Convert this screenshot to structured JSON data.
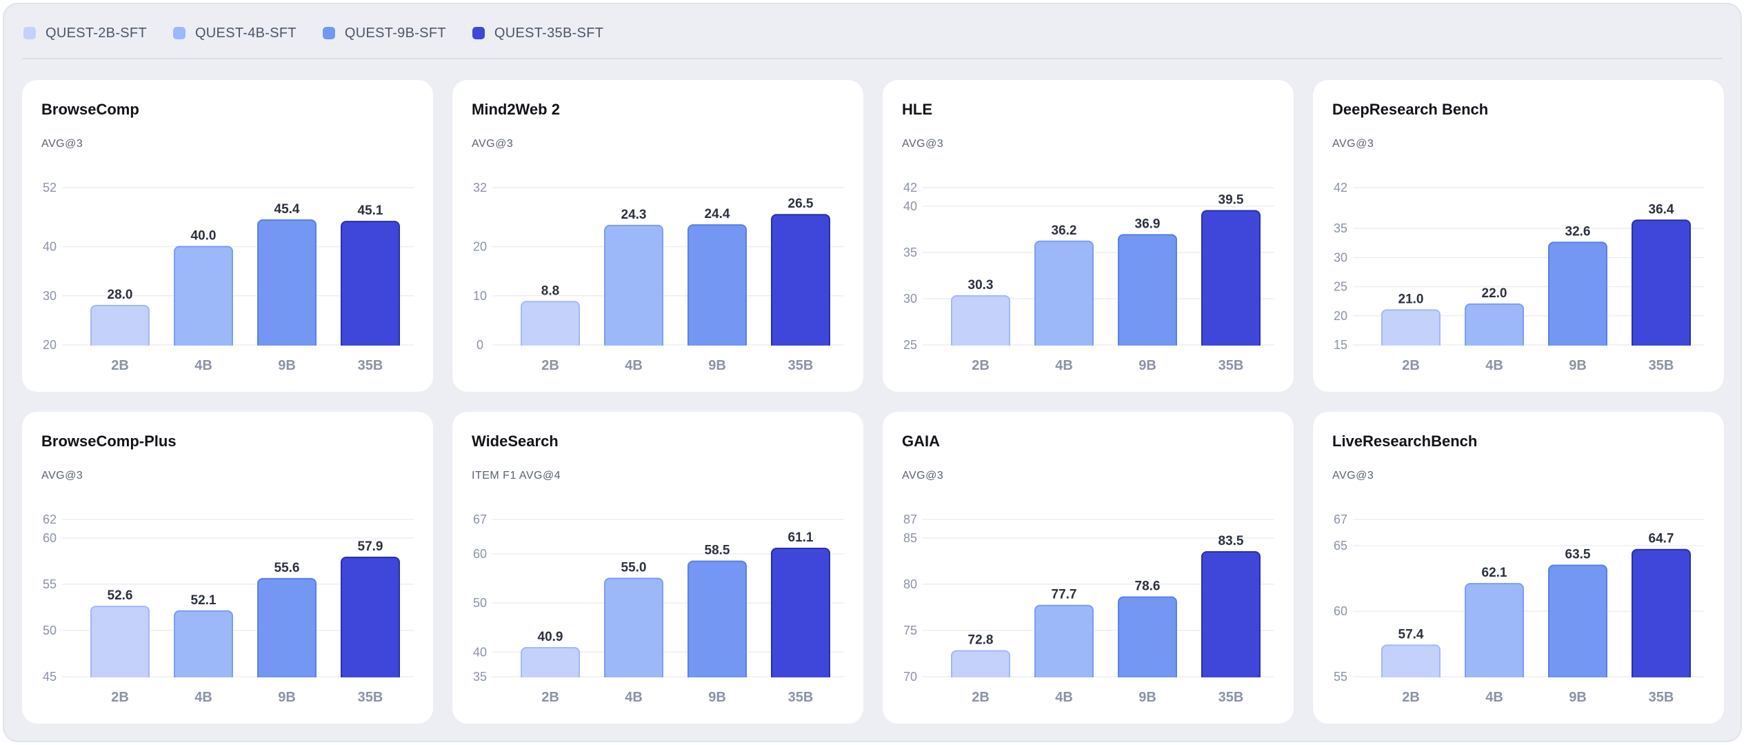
{
  "legend": [
    {
      "label": "QUEST-2B-SFT",
      "color": "#c3d1fb"
    },
    {
      "label": "QUEST-4B-SFT",
      "color": "#9db8f8"
    },
    {
      "label": "QUEST-9B-SFT",
      "color": "#7397f2"
    },
    {
      "label": "QUEST-35B-SFT",
      "color": "#3f47da"
    }
  ],
  "colors": {
    "bar_fills": [
      "#c3d1fb",
      "#9db8f8",
      "#7397f2",
      "#3f47da"
    ],
    "bar_strokes": [
      "#a4b8f5",
      "#7c9ef0",
      "#5b80e6",
      "#2a2fa8"
    ],
    "grid": "#eceef2",
    "tick_text": "#8a93a6",
    "category_text": "#8a93a6",
    "value_text": "#2b3140"
  },
  "chart_data": [
    {
      "type": "bar",
      "title": "BrowseComp",
      "subtitle": "AVG@3",
      "categories": [
        "2B",
        "4B",
        "9B",
        "35B"
      ],
      "values": [
        28.0,
        40.0,
        45.4,
        45.1
      ],
      "value_labels": [
        "28.0",
        "40.0",
        "45.4",
        "45.1"
      ],
      "yticks": [
        20,
        30,
        40,
        52
      ],
      "ylim": [
        20,
        52
      ]
    },
    {
      "type": "bar",
      "title": "Mind2Web 2",
      "subtitle": "AVG@3",
      "categories": [
        "2B",
        "4B",
        "9B",
        "35B"
      ],
      "values": [
        8.8,
        24.3,
        24.4,
        26.5
      ],
      "value_labels": [
        "8.8",
        "24.3",
        "24.4",
        "26.5"
      ],
      "yticks": [
        0,
        10,
        20,
        32
      ],
      "ylim": [
        0,
        32
      ]
    },
    {
      "type": "bar",
      "title": "HLE",
      "subtitle": "AVG@3",
      "categories": [
        "2B",
        "4B",
        "9B",
        "35B"
      ],
      "values": [
        30.3,
        36.2,
        36.9,
        39.5
      ],
      "value_labels": [
        "30.3",
        "36.2",
        "36.9",
        "39.5"
      ],
      "yticks": [
        25,
        30,
        35,
        40,
        42
      ],
      "ylim": [
        25,
        42
      ]
    },
    {
      "type": "bar",
      "title": "DeepResearch Bench",
      "subtitle": "AVG@3",
      "categories": [
        "2B",
        "4B",
        "9B",
        "35B"
      ],
      "values": [
        21.0,
        22.0,
        32.6,
        36.4
      ],
      "value_labels": [
        "21.0",
        "22.0",
        "32.6",
        "36.4"
      ],
      "yticks": [
        15,
        20,
        25,
        30,
        35,
        42
      ],
      "ylim": [
        15,
        42
      ]
    },
    {
      "type": "bar",
      "title": "BrowseComp-Plus",
      "subtitle": "AVG@3",
      "categories": [
        "2B",
        "4B",
        "9B",
        "35B"
      ],
      "values": [
        52.6,
        52.1,
        55.6,
        57.9
      ],
      "value_labels": [
        "52.6",
        "52.1",
        "55.6",
        "57.9"
      ],
      "yticks": [
        45,
        50,
        55,
        60,
        62
      ],
      "ylim": [
        45,
        62
      ]
    },
    {
      "type": "bar",
      "title": "WideSearch",
      "subtitle": "ITEM F1 AVG@4",
      "categories": [
        "2B",
        "4B",
        "9B",
        "35B"
      ],
      "values": [
        40.9,
        55.0,
        58.5,
        61.1
      ],
      "value_labels": [
        "40.9",
        "55.0",
        "58.5",
        "61.1"
      ],
      "yticks": [
        35,
        40,
        50,
        60,
        67
      ],
      "ylim": [
        35,
        67
      ]
    },
    {
      "type": "bar",
      "title": "GAIA",
      "subtitle": "AVG@3",
      "categories": [
        "2B",
        "4B",
        "9B",
        "35B"
      ],
      "values": [
        72.8,
        77.7,
        78.6,
        83.5
      ],
      "value_labels": [
        "72.8",
        "77.7",
        "78.6",
        "83.5"
      ],
      "yticks": [
        70,
        75,
        80,
        85,
        87
      ],
      "ylim": [
        70,
        87
      ]
    },
    {
      "type": "bar",
      "title": "LiveResearchBench",
      "subtitle": "AVG@3",
      "categories": [
        "2B",
        "4B",
        "9B",
        "35B"
      ],
      "values": [
        57.4,
        62.1,
        63.5,
        64.7
      ],
      "value_labels": [
        "57.4",
        "62.1",
        "63.5",
        "64.7"
      ],
      "yticks": [
        55,
        60,
        65,
        67
      ],
      "ylim": [
        55,
        67
      ]
    }
  ]
}
